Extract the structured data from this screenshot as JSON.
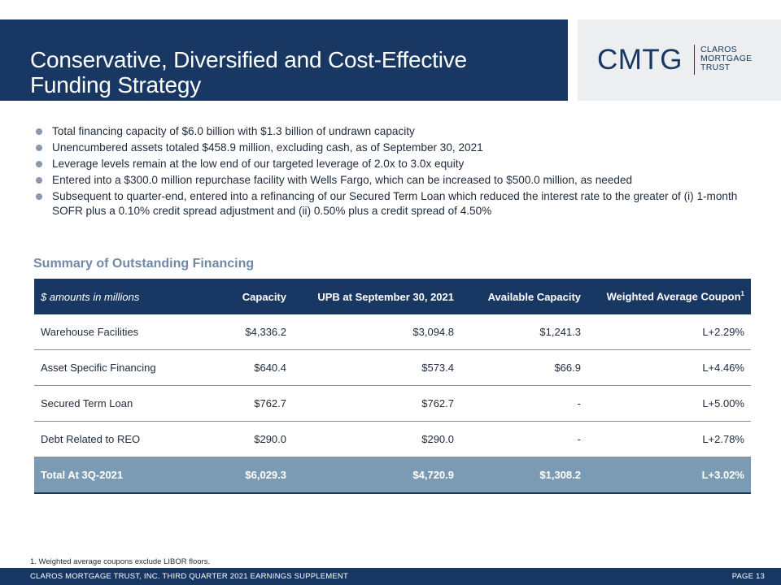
{
  "header": {
    "title": "Conservative, Diversified and Cost-Effective Funding Strategy",
    "logo": {
      "mark": "CMTG",
      "line1": "CLAROS",
      "line2": "MORTGAGE",
      "line3": "TRUST"
    }
  },
  "bullets": [
    "Total financing capacity of $6.0 billion with $1.3 billion of undrawn capacity",
    "Unencumbered assets totaled $458.9 million, excluding cash, as of September 30, 2021",
    "Leverage levels remain at the low end of our targeted leverage of 2.0x to 3.0x equity",
    "Entered into a $300.0 million repurchase facility with Wells Fargo, which can be increased to $500.0 million, as needed",
    "Subsequent to quarter-end, entered into a refinancing of our Secured Term Loan which reduced the interest rate to the greater of (i) 1-month SOFR plus a 0.10% credit spread adjustment and (ii) 0.50% plus a credit spread of 4.50%"
  ],
  "section_title": "Summary of Outstanding Financing",
  "table": {
    "headers": [
      "$ amounts in millions",
      "Capacity",
      "UPB at September 30, 2021",
      "Available Capacity",
      "Weighted Average Coupon"
    ],
    "header_footnote": "1",
    "rows": [
      [
        "Warehouse Facilities",
        "$4,336.2",
        "$3,094.8",
        "$1,241.3",
        "L+2.29%"
      ],
      [
        "Asset Specific Financing",
        "$640.4",
        "$573.4",
        "$66.9",
        "L+4.46%"
      ],
      [
        "Secured Term Loan",
        "$762.7",
        "$762.7",
        "-",
        "L+5.00%"
      ],
      [
        "Debt Related to REO",
        "$290.0",
        "$290.0",
        "-",
        "L+2.78%"
      ]
    ],
    "total": [
      "Total At 3Q-2021",
      "$6,029.3",
      "$4,720.9",
      "$1,308.2",
      "L+3.02%"
    ]
  },
  "footnote": "1. Weighted average coupons exclude LIBOR floors.",
  "footer": {
    "left": "CLAROS MORTGAGE TRUST, INC. THIRD QUARTER 2021 EARNINGS SUPPLEMENT",
    "right": "PAGE 13"
  },
  "colors": {
    "navy": "#183863",
    "total_row": "#7b9bb4",
    "section_title": "#6f89a8",
    "logo_bg": "#eceeef"
  }
}
